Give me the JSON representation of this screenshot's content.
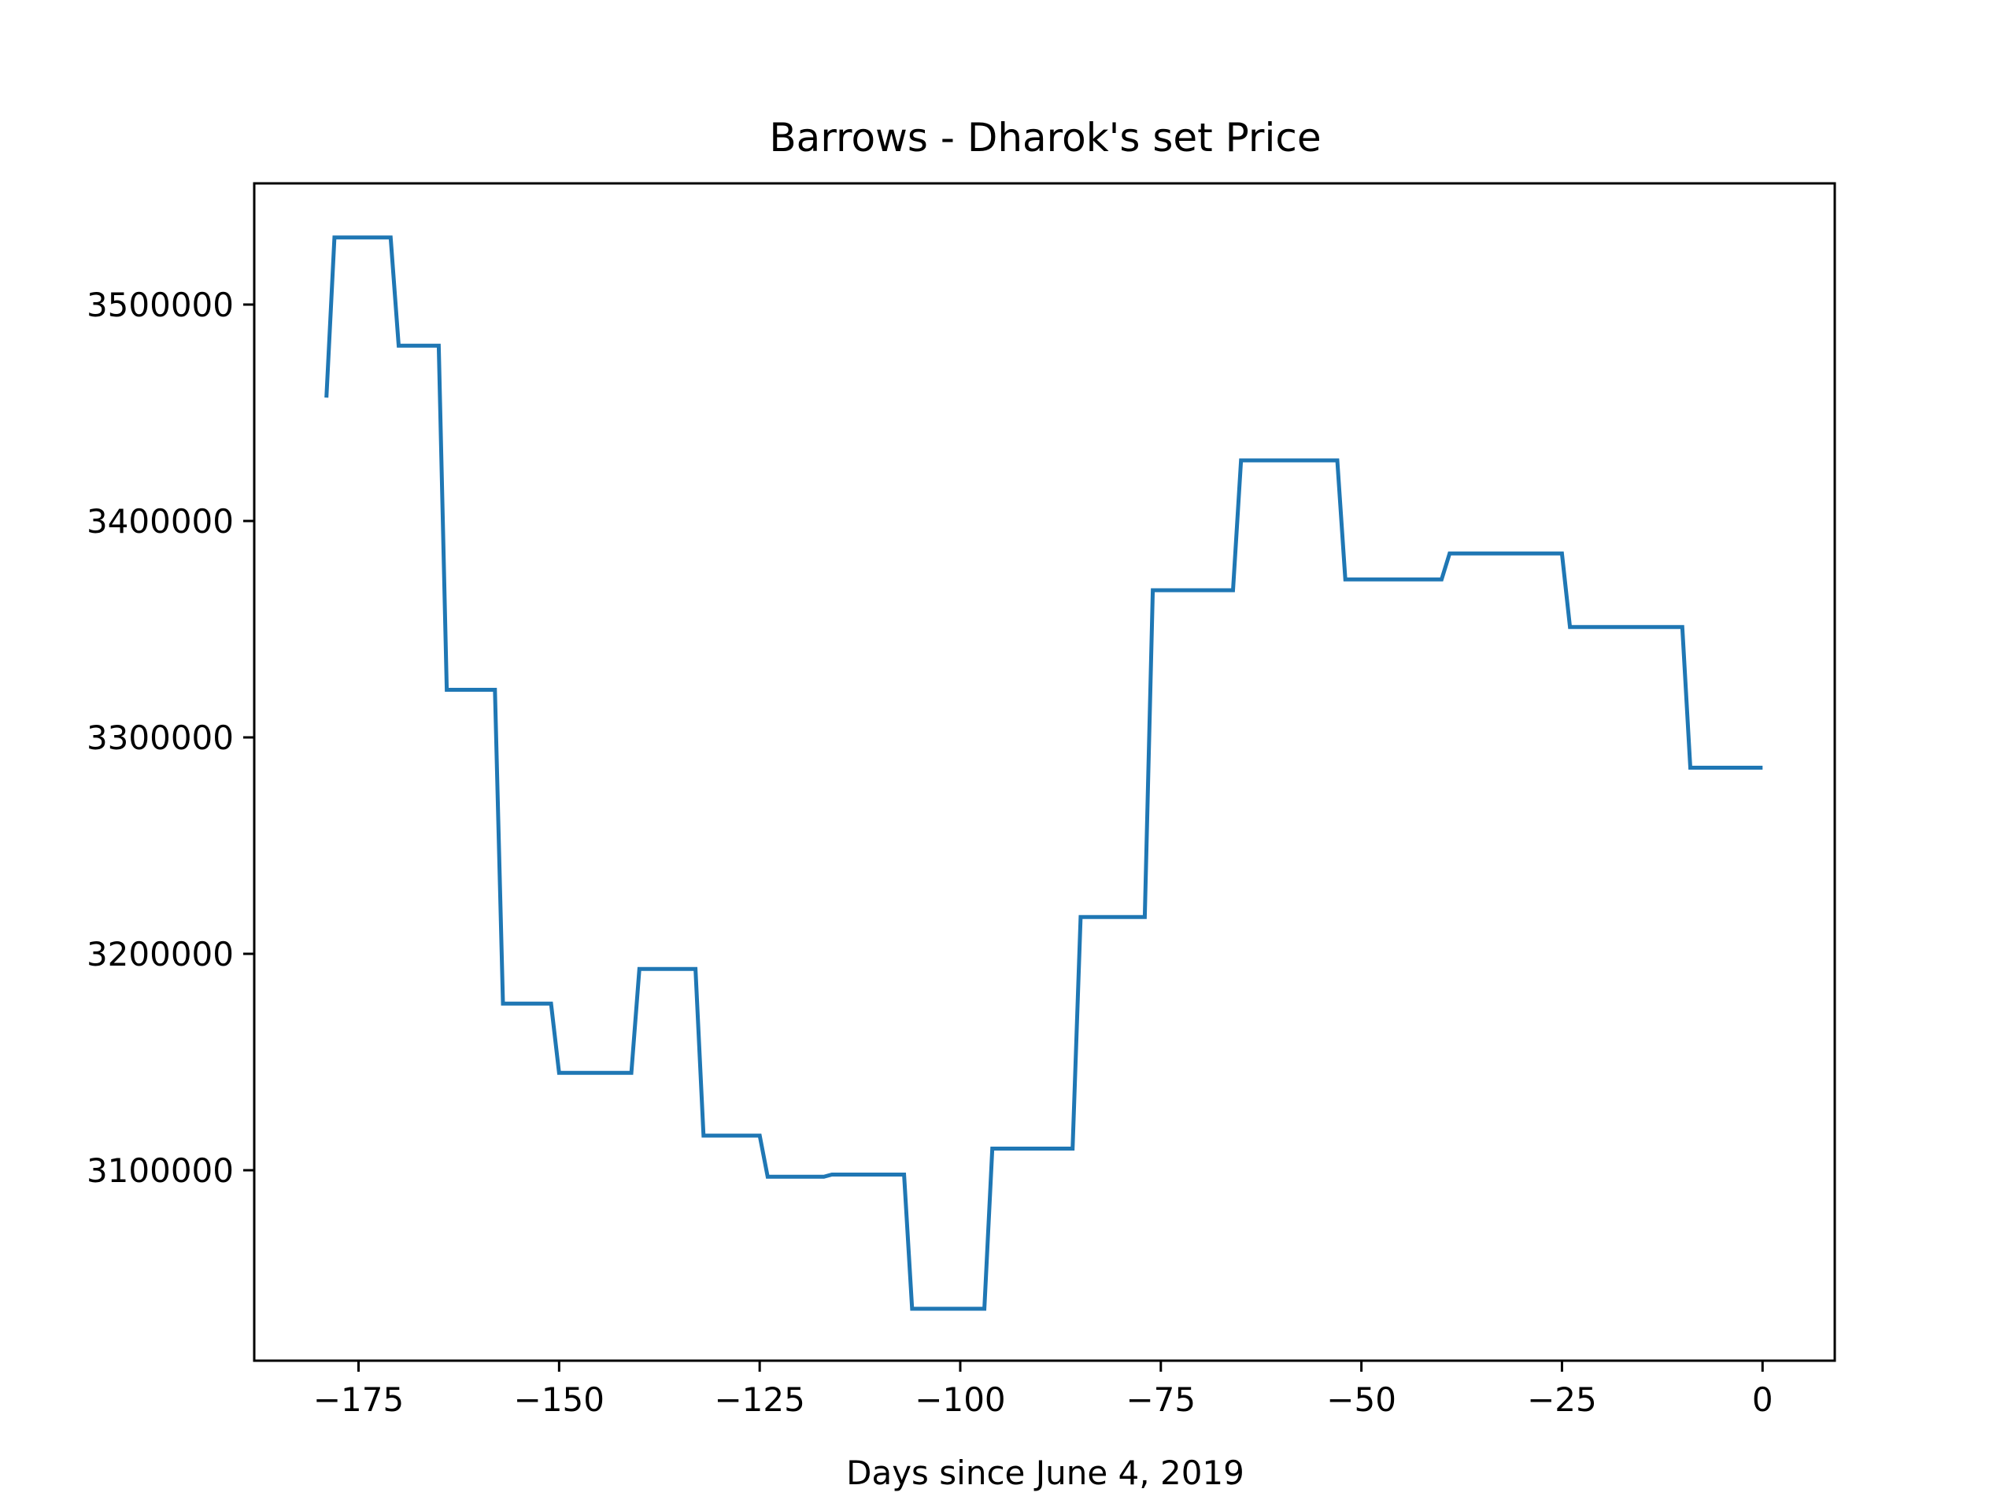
{
  "chart_data": {
    "type": "line",
    "title": "Barrows - Dharok's set Price",
    "xlabel": "Days since June 4, 2019",
    "ylabel": "",
    "xlim": [
      -188,
      9
    ],
    "ylim": [
      3012000,
      3556000
    ],
    "xticks": [
      -175,
      -150,
      -125,
      -100,
      -75,
      -50,
      -25,
      0
    ],
    "xtick_labels": [
      "−175",
      "−150",
      "−125",
      "−100",
      "−75",
      "−50",
      "−25",
      "0"
    ],
    "yticks": [
      3100000,
      3200000,
      3300000,
      3400000,
      3500000
    ],
    "ytick_labels": [
      "3100000",
      "3200000",
      "3300000",
      "3400000",
      "3500000"
    ],
    "grid": false,
    "colors": {
      "line": "#1f77b4",
      "axes": "#000000"
    },
    "series": [
      {
        "x": [
          -179,
          -178,
          -171,
          -170,
          -165,
          -164,
          -158,
          -157,
          -151,
          -150,
          -141,
          -140,
          -133,
          -132,
          -125,
          -124,
          -117,
          -116,
          -107,
          -106,
          -97,
          -96,
          -86,
          -85,
          -77,
          -76,
          -66,
          -65,
          -53,
          -52,
          -40,
          -39,
          -25,
          -24,
          -10,
          -9,
          0
        ],
        "y": [
          3457000,
          3531000,
          3531000,
          3481000,
          3481000,
          3322000,
          3322000,
          3177000,
          3177000,
          3145000,
          3145000,
          3193000,
          3193000,
          3116000,
          3116000,
          3097000,
          3097000,
          3098000,
          3098000,
          3036000,
          3036000,
          3110000,
          3110000,
          3217000,
          3217000,
          3368000,
          3368000,
          3428000,
          3428000,
          3373000,
          3373000,
          3385000,
          3385000,
          3351000,
          3351000,
          3286000,
          3286000
        ]
      }
    ]
  }
}
